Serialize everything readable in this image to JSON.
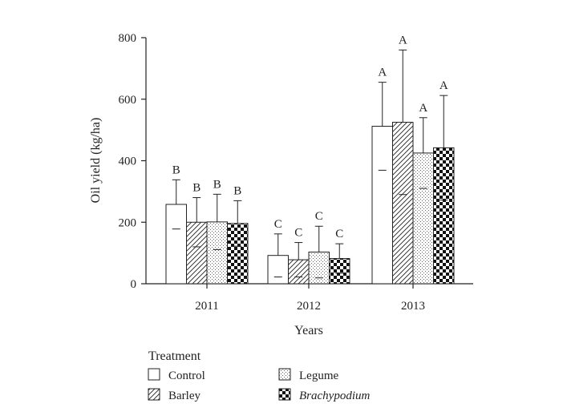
{
  "chart_data": {
    "type": "bar",
    "xlabel": "Years",
    "ylabel": "Oil yield (kg/ha)",
    "ylim": [
      0,
      800
    ],
    "yticks": [
      0,
      200,
      400,
      600,
      800
    ],
    "categories": [
      "2011",
      "2012",
      "2013"
    ],
    "legend": {
      "title": "Treatment",
      "placement": "bottom"
    },
    "series": [
      {
        "name": "Control",
        "pattern": "none",
        "values": [
          258,
          92,
          512
        ],
        "errors": [
          80,
          70,
          143
        ],
        "labels": [
          "B",
          "C",
          "A"
        ]
      },
      {
        "name": "Barley",
        "pattern": "diagonal-hatch",
        "values": [
          200,
          78,
          525
        ],
        "errors": [
          80,
          56,
          235
        ],
        "labels": [
          "B",
          "C",
          "A"
        ]
      },
      {
        "name": "Legume",
        "pattern": "dots",
        "values": [
          201,
          103,
          425
        ],
        "errors": [
          90,
          84,
          115
        ],
        "labels": [
          "B",
          "C",
          "A"
        ]
      },
      {
        "name": "Brachypodium",
        "pattern": "checkerboard",
        "values": [
          196,
          82,
          442
        ],
        "errors": [
          74,
          48,
          170
        ],
        "labels": [
          "B",
          "C",
          "A"
        ]
      }
    ]
  }
}
